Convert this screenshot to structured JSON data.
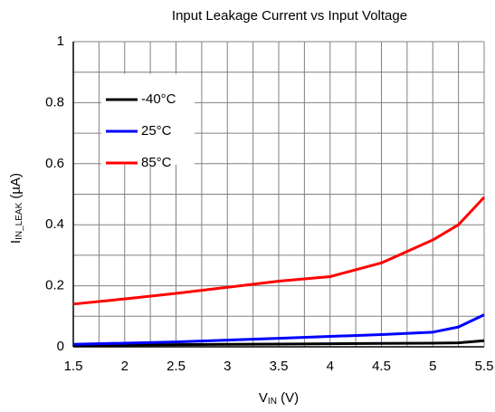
{
  "chart_data": {
    "type": "line",
    "title": "Input Leakage Current vs Input Voltage",
    "x_label": [
      "V",
      "IN",
      " (V)"
    ],
    "y_label": [
      "I",
      "IN_LEAK",
      " (µA)"
    ],
    "x": [
      1.5,
      2,
      2.5,
      3,
      3.5,
      4,
      4.5,
      5,
      5.25,
      5.5
    ],
    "series": [
      {
        "name": "-40°C",
        "color": "#000000",
        "values": [
          0.005,
          0.006,
          0.007,
          0.008,
          0.009,
          0.01,
          0.011,
          0.012,
          0.013,
          0.02
        ]
      },
      {
        "name": "25°C",
        "color": "#0000ff",
        "values": [
          0.008,
          0.012,
          0.016,
          0.022,
          0.028,
          0.034,
          0.04,
          0.048,
          0.065,
          0.105
        ]
      },
      {
        "name": "85°C",
        "color": "#ff0000",
        "values": [
          0.14,
          0.157,
          0.175,
          0.195,
          0.215,
          0.23,
          0.275,
          0.35,
          0.4,
          0.49
        ]
      }
    ],
    "xlim": [
      1.5,
      5.5
    ],
    "ylim": [
      0,
      1
    ],
    "xticks": [
      1.5,
      2,
      2.5,
      3,
      3.5,
      4,
      4.5,
      5,
      5.5
    ],
    "yticks": [
      0,
      0.2,
      0.4,
      0.6,
      0.8,
      1
    ],
    "x_grid": [
      1.75,
      2.25,
      2.75,
      3.25,
      3.75,
      4.25,
      4.75,
      5.25
    ],
    "y_grid": [
      0.1,
      0.3,
      0.5,
      0.7,
      0.9
    ],
    "grid": true,
    "legend": "upper left"
  }
}
